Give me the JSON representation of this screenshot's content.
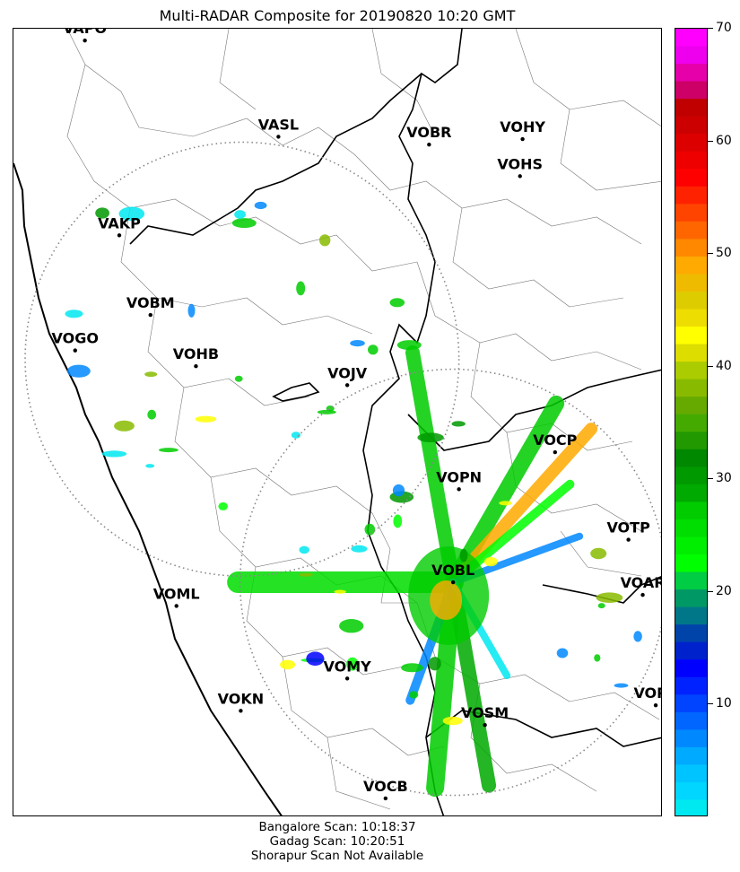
{
  "title": "Multi-RADAR Composite for 20190820 10:20 GMT",
  "chart_data": {
    "type": "heatmap",
    "title": "Multi-RADAR Composite for 20190820 10:20 GMT",
    "description_units": "reflectivity",
    "colorbar": {
      "min": 0,
      "max": 70,
      "ticks": [
        10,
        20,
        30,
        40,
        50,
        60,
        70
      ],
      "colors_top_to_bottom": [
        "#ff00ff",
        "#ee00ee",
        "#e600aa",
        "#cc0066",
        "#c00000",
        "#cc0000",
        "#dd0000",
        "#ee0000",
        "#ff0000",
        "#ff2200",
        "#ff4400",
        "#ff6600",
        "#ff8800",
        "#ffaa00",
        "#eebb00",
        "#ddcc00",
        "#eedd00",
        "#ffff00",
        "#dddd00",
        "#aacc00",
        "#88bb00",
        "#66aa00",
        "#44aa00",
        "#229900",
        "#008800",
        "#009900",
        "#00aa00",
        "#00cc00",
        "#00dd00",
        "#00ee00",
        "#00ff00",
        "#00cc44",
        "#009966",
        "#007788",
        "#0044aa",
        "#0022cc",
        "#0000ff",
        "#0022ff",
        "#0044ff",
        "#0066ff",
        "#0088ff",
        "#00aaff",
        "#00c4ff",
        "#00d6ff",
        "#00e8f0"
      ]
    },
    "stations": [
      {
        "name": "VAPO",
        "lon_rel": 0.11,
        "lat_rel": 0.015
      },
      {
        "name": "VASL",
        "lon_rel": 0.408,
        "lat_rel": 0.137
      },
      {
        "name": "VOBR",
        "lon_rel": 0.64,
        "lat_rel": 0.147
      },
      {
        "name": "VOHY",
        "lon_rel": 0.784,
        "lat_rel": 0.14
      },
      {
        "name": "VOHS",
        "lon_rel": 0.78,
        "lat_rel": 0.187
      },
      {
        "name": "VAKP",
        "lon_rel": 0.163,
        "lat_rel": 0.262
      },
      {
        "name": "VOBM",
        "lon_rel": 0.211,
        "lat_rel": 0.363
      },
      {
        "name": "VOGO",
        "lon_rel": 0.095,
        "lat_rel": 0.408
      },
      {
        "name": "VOHB",
        "lon_rel": 0.281,
        "lat_rel": 0.428
      },
      {
        "name": "VOJV",
        "lon_rel": 0.514,
        "lat_rel": 0.452
      },
      {
        "name": "VOCP",
        "lon_rel": 0.834,
        "lat_rel": 0.537
      },
      {
        "name": "VOPN",
        "lon_rel": 0.686,
        "lat_rel": 0.584
      },
      {
        "name": "VOTP",
        "lon_rel": 0.947,
        "lat_rel": 0.648
      },
      {
        "name": "VOBL",
        "lon_rel": 0.677,
        "lat_rel": 0.702
      },
      {
        "name": "VOAR",
        "lon_rel": 0.969,
        "lat_rel": 0.718
      },
      {
        "name": "VOML",
        "lon_rel": 0.251,
        "lat_rel": 0.732
      },
      {
        "name": "VOMY",
        "lon_rel": 0.514,
        "lat_rel": 0.824
      },
      {
        "name": "VOKN",
        "lon_rel": 0.35,
        "lat_rel": 0.865
      },
      {
        "name": "VOPC",
        "lon_rel": 0.989,
        "lat_rel": 0.858
      },
      {
        "name": "VOSM",
        "lon_rel": 0.726,
        "lat_rel": 0.883
      },
      {
        "name": "VOCB",
        "lon_rel": 0.573,
        "lat_rel": 0.976
      }
    ],
    "radar_range_rings": [
      {
        "name": "Gadag",
        "center_rel": [
          0.352,
          0.419
        ],
        "radius_rel_x": 0.334
      },
      {
        "name": "Bangalore",
        "center_rel": [
          0.677,
          0.702
        ],
        "radius_rel_x": 0.328
      }
    ]
  },
  "footer": {
    "line1": "Bangalore Scan: 10:18:37",
    "line2": "Gadag Scan: 10:20:51",
    "line3": "Shorapur Scan Not Available"
  },
  "colors": {
    "coastline": "#000000",
    "state_border": "#000000",
    "district_border": "#777777",
    "range_ring": "#888888"
  }
}
